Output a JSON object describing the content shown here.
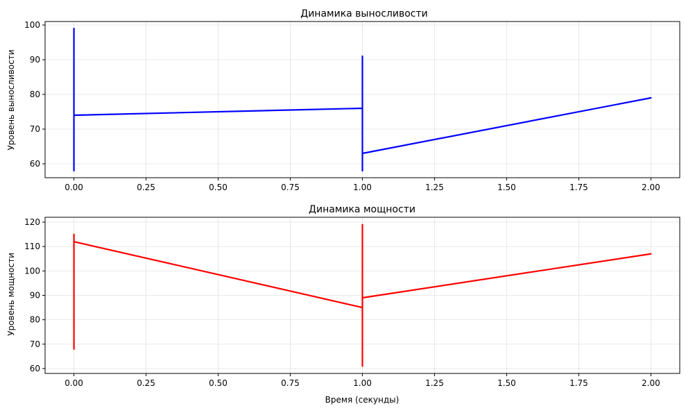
{
  "chart_data": [
    {
      "type": "line",
      "title": "Динамика выносливости",
      "xlabel": "",
      "ylabel": "Уровень выносливости",
      "xlim": [
        -0.1,
        2.1
      ],
      "ylim": [
        56,
        101
      ],
      "xticks": [
        0.0,
        0.25,
        0.5,
        0.75,
        1.0,
        1.25,
        1.5,
        1.75,
        2.0
      ],
      "xtick_labels": [
        "0.00",
        "0.25",
        "0.50",
        "0.75",
        "1.00",
        "1.25",
        "1.50",
        "1.75",
        "2.00"
      ],
      "yticks": [
        60,
        70,
        80,
        90,
        100
      ],
      "ytick_labels": [
        "60",
        "70",
        "80",
        "90",
        "100"
      ],
      "grid": true,
      "color": "#0000ff",
      "series": [
        {
          "x": [
            0,
            0,
            0,
            0,
            1,
            1,
            1,
            1,
            1,
            1,
            2
          ],
          "y": [
            58,
            99,
            58,
            74,
            76,
            91,
            58,
            90,
            59,
            63,
            79
          ]
        }
      ]
    },
    {
      "type": "line",
      "title": "Динамика мощности",
      "xlabel": "Время (секунды)",
      "ylabel": "Уровень мощности",
      "xlim": [
        -0.1,
        2.1
      ],
      "ylim": [
        58,
        122
      ],
      "xticks": [
        0.0,
        0.25,
        0.5,
        0.75,
        1.0,
        1.25,
        1.5,
        1.75,
        2.0
      ],
      "xtick_labels": [
        "0.00",
        "0.25",
        "0.50",
        "0.75",
        "1.00",
        "1.25",
        "1.50",
        "1.75",
        "2.00"
      ],
      "yticks": [
        60,
        70,
        80,
        90,
        100,
        110,
        120
      ],
      "ytick_labels": [
        "60",
        "70",
        "80",
        "90",
        "100",
        "110",
        "120"
      ],
      "grid": true,
      "color": "#ff0000",
      "series": [
        {
          "x": [
            0,
            0,
            0,
            0,
            1,
            1,
            1,
            1,
            1,
            1,
            2
          ],
          "y": [
            68,
            115,
            70,
            112,
            85,
            119,
            61,
            100,
            80,
            89,
            107
          ]
        }
      ]
    }
  ]
}
